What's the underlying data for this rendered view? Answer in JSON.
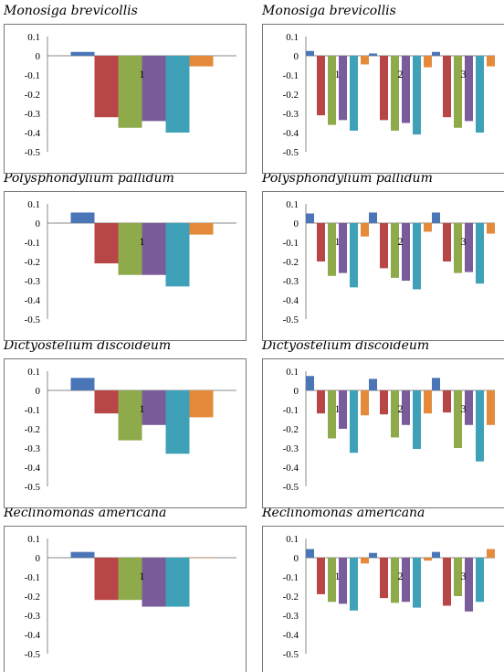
{
  "colors": {
    "series": [
      "#4a75b6",
      "#b84646",
      "#8eaa4a",
      "#7a5c9a",
      "#3fa1b8",
      "#e58a3b"
    ],
    "frame": "#777777",
    "axis": "#888888"
  },
  "titles": {
    "row1": "Monosiga brevicollis",
    "row2": "Polysphondylium pallidum",
    "row3": "Dictyostelium discoideum",
    "row4": "Reclinomonas americana"
  },
  "y_ticks": [
    "0.1",
    "0",
    "-0.1",
    "-0.2",
    "-0.3",
    "-0.4",
    "-0.5"
  ],
  "chart_data": [
    {
      "type": "bar",
      "title": "Monosiga brevicollis",
      "categories": [
        "1"
      ],
      "ylim": [
        -0.5,
        0.1
      ],
      "series": [
        {
          "values": [
            0.02
          ]
        },
        {
          "values": [
            -0.32
          ]
        },
        {
          "values": [
            -0.375
          ]
        },
        {
          "values": [
            -0.34
          ]
        },
        {
          "values": [
            -0.4
          ]
        },
        {
          "values": [
            -0.055
          ]
        }
      ]
    },
    {
      "type": "bar",
      "title": "Monosiga brevicollis",
      "categories": [
        "1",
        "2",
        "3"
      ],
      "ylim": [
        -0.5,
        0.1
      ],
      "series": [
        {
          "values": [
            0.025,
            0.012,
            0.02
          ]
        },
        {
          "values": [
            -0.31,
            -0.335,
            -0.32
          ]
        },
        {
          "values": [
            -0.36,
            -0.39,
            -0.375
          ]
        },
        {
          "values": [
            -0.335,
            -0.35,
            -0.34
          ]
        },
        {
          "values": [
            -0.39,
            -0.41,
            -0.4
          ]
        },
        {
          "values": [
            -0.045,
            -0.06,
            -0.055
          ]
        }
      ]
    },
    {
      "type": "bar",
      "title": "Polysphondylium pallidum",
      "categories": [
        "1"
      ],
      "ylim": [
        -0.5,
        0.1
      ],
      "series": [
        {
          "values": [
            0.055
          ]
        },
        {
          "values": [
            -0.21
          ]
        },
        {
          "values": [
            -0.27
          ]
        },
        {
          "values": [
            -0.27
          ]
        },
        {
          "values": [
            -0.33
          ]
        },
        {
          "values": [
            -0.06
          ]
        }
      ]
    },
    {
      "type": "bar",
      "title": "Polysphondylium pallidum",
      "categories": [
        "1",
        "2",
        "3"
      ],
      "ylim": [
        -0.5,
        0.1
      ],
      "series": [
        {
          "values": [
            0.05,
            0.055,
            0.055
          ]
        },
        {
          "values": [
            -0.2,
            -0.235,
            -0.2
          ]
        },
        {
          "values": [
            -0.275,
            -0.285,
            -0.26
          ]
        },
        {
          "values": [
            -0.26,
            -0.3,
            -0.255
          ]
        },
        {
          "values": [
            -0.335,
            -0.345,
            -0.315
          ]
        },
        {
          "values": [
            -0.07,
            -0.045,
            -0.055
          ]
        }
      ]
    },
    {
      "type": "bar",
      "title": "Dictyostelium discoideum",
      "categories": [
        "1"
      ],
      "ylim": [
        -0.5,
        0.1
      ],
      "series": [
        {
          "values": [
            0.065
          ]
        },
        {
          "values": [
            -0.12
          ]
        },
        {
          "values": [
            -0.26
          ]
        },
        {
          "values": [
            -0.18
          ]
        },
        {
          "values": [
            -0.33
          ]
        },
        {
          "values": [
            -0.14
          ]
        }
      ]
    },
    {
      "type": "bar",
      "title": "Dictyostelium discoideum",
      "categories": [
        "1",
        "2",
        "3"
      ],
      "ylim": [
        -0.5,
        0.1
      ],
      "series": [
        {
          "values": [
            0.075,
            0.06,
            0.065
          ]
        },
        {
          "values": [
            -0.12,
            -0.125,
            -0.115
          ]
        },
        {
          "values": [
            -0.25,
            -0.245,
            -0.3
          ]
        },
        {
          "values": [
            -0.2,
            -0.18,
            -0.18
          ]
        },
        {
          "values": [
            -0.325,
            -0.305,
            -0.37
          ]
        },
        {
          "values": [
            -0.13,
            -0.12,
            -0.18
          ]
        }
      ]
    },
    {
      "type": "bar",
      "title": "Reclinomonas americana",
      "categories": [
        "1"
      ],
      "ylim": [
        -0.5,
        0.1
      ],
      "series": [
        {
          "values": [
            0.03
          ]
        },
        {
          "values": [
            -0.22
          ]
        },
        {
          "values": [
            -0.22
          ]
        },
        {
          "values": [
            -0.255
          ]
        },
        {
          "values": [
            -0.255
          ]
        },
        {
          "values": [
            0
          ]
        }
      ]
    },
    {
      "type": "bar",
      "title": "Reclinomonas americana",
      "categories": [
        "1",
        "2",
        "3"
      ],
      "ylim": [
        -0.5,
        0.1
      ],
      "series": [
        {
          "values": [
            0.045,
            0.025,
            0.03
          ]
        },
        {
          "values": [
            -0.19,
            -0.21,
            -0.25
          ]
        },
        {
          "values": [
            -0.23,
            -0.235,
            -0.2
          ]
        },
        {
          "values": [
            -0.24,
            -0.23,
            -0.28
          ]
        },
        {
          "values": [
            -0.275,
            -0.26,
            -0.23
          ]
        },
        {
          "values": [
            -0.03,
            -0.015,
            0.045
          ]
        }
      ]
    }
  ]
}
